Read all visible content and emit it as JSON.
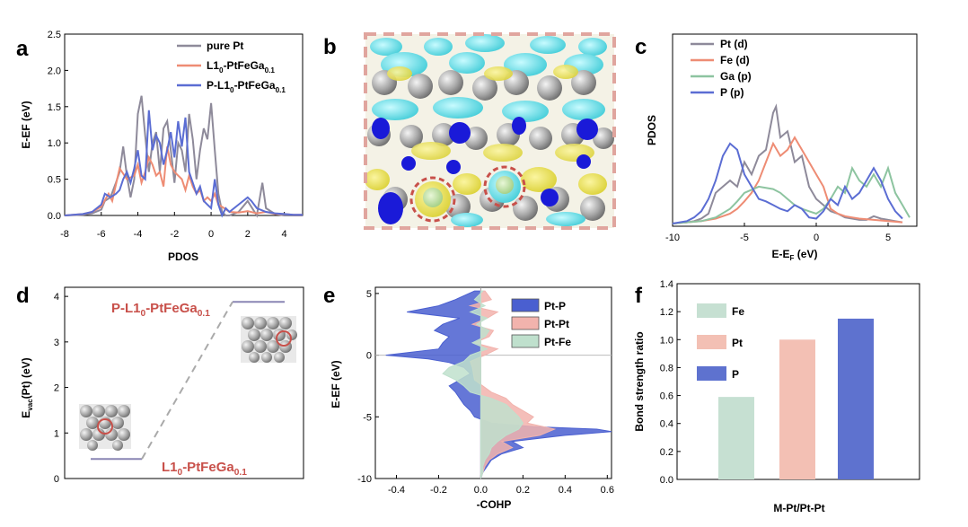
{
  "panel_labels": [
    "a",
    "b",
    "c",
    "d",
    "e",
    "f"
  ],
  "colors": {
    "grey": "#8e8a9a",
    "orange": "#ee8c74",
    "blue": "#5b6dd3",
    "green": "#8dc4a0",
    "bar_fe": "#c6e0d2",
    "bar_pt": "#f3c0b4",
    "bar_p": "#5e72cf",
    "cohp_p": "#4a5fd0",
    "cohp_pt": "#f2b3ad",
    "cohp_fe": "#bfe0cd",
    "label_red": "#c8504a",
    "dashed": "#aaaaaa"
  },
  "chart_data": [
    {
      "id": "a",
      "type": "line",
      "title": "",
      "xlabel": "PDOS",
      "ylabel": "E-EF (eV)",
      "xlim": [
        -8,
        5
      ],
      "ylim": [
        0,
        2.5
      ],
      "xticks": [
        "-8",
        "-6",
        "-4",
        "-2",
        "0",
        "2",
        "4"
      ],
      "yticks": [
        "0.0",
        "0.5",
        "1.0",
        "1.5",
        "2.0",
        "2.5"
      ],
      "legend": "top-right",
      "series": [
        {
          "name": "pure Pt",
          "legend_main": "pure Pt",
          "legend_sub": "",
          "legend_tail": "",
          "color": "#8e8a9a",
          "x": [
            -8,
            -7,
            -6.5,
            -6,
            -5.8,
            -5.5,
            -5.2,
            -5,
            -4.8,
            -4.6,
            -4.4,
            -4.2,
            -4,
            -3.8,
            -3.6,
            -3.4,
            -3.2,
            -3,
            -2.8,
            -2.6,
            -2.4,
            -2.2,
            -2,
            -1.8,
            -1.6,
            -1.4,
            -1.2,
            -1,
            -0.8,
            -0.6,
            -0.4,
            -0.2,
            0,
            0.2,
            0.4,
            0.6,
            0.8,
            1,
            1.5,
            2,
            2.5,
            2.8,
            3,
            3.5,
            4,
            4.5,
            5
          ],
          "y": [
            0,
            0.01,
            0.03,
            0.08,
            0.2,
            0.25,
            0.45,
            0.6,
            0.95,
            0.55,
            0.25,
            0.5,
            1.4,
            1.65,
            1.1,
            0.6,
            1.0,
            1.15,
            0.6,
            1.2,
            1.3,
            0.9,
            0.45,
            1.0,
            0.9,
            0.6,
            1.4,
            1.05,
            0.5,
            0.9,
            1.2,
            1.05,
            1.55,
            0.9,
            0.3,
            0.05,
            0.0,
            0.0,
            0.05,
            0.2,
            0.0,
            0.45,
            0.1,
            0.02,
            0.0,
            0.0,
            0.0
          ]
        },
        {
          "name": "L10-PtFeGa0.1",
          "legend_main": "L1",
          "legend_sub": "0",
          "legend_tail": "-PtFeGa",
          "legend_sub2": "0.1",
          "color": "#ee8c74",
          "x": [
            -8,
            -7,
            -6.5,
            -6,
            -5.6,
            -5.4,
            -5,
            -4.6,
            -4.2,
            -4,
            -3.8,
            -3.6,
            -3.4,
            -3.2,
            -3,
            -2.8,
            -2.6,
            -2.4,
            -2.2,
            -2,
            -1.8,
            -1.6,
            -1.4,
            -1.2,
            -1,
            -0.8,
            -0.6,
            -0.4,
            -0.2,
            0,
            0.2,
            0.4,
            0.6,
            1,
            1.5,
            2,
            2.5,
            3,
            3.5,
            4,
            4.5,
            5
          ],
          "y": [
            0,
            0.02,
            0.05,
            0.12,
            0.3,
            0.2,
            0.65,
            0.5,
            0.55,
            0.7,
            0.45,
            0.6,
            0.8,
            0.7,
            0.55,
            0.6,
            0.4,
            0.95,
            0.7,
            0.6,
            0.55,
            0.5,
            0.35,
            0.55,
            0.4,
            0.3,
            0.35,
            0.2,
            0.25,
            0.2,
            0.3,
            0.15,
            0.12,
            0.05,
            0.04,
            0.06,
            0.03,
            0.05,
            0.02,
            0.02,
            0.01,
            0.01
          ]
        },
        {
          "name": "P-L10-PtFeGa0.1",
          "legend_main": "P-L1",
          "legend_sub": "0",
          "legend_tail": "-PtFeGa",
          "legend_sub2": "0.1",
          "color": "#5b6dd3",
          "x": [
            -8,
            -7,
            -6.5,
            -6,
            -5.8,
            -5.5,
            -5.2,
            -5,
            -4.8,
            -4.6,
            -4.4,
            -4.2,
            -4,
            -3.8,
            -3.6,
            -3.4,
            -3.2,
            -3,
            -2.8,
            -2.6,
            -2.4,
            -2.2,
            -2,
            -1.8,
            -1.6,
            -1.4,
            -1.2,
            -1,
            -0.8,
            -0.6,
            -0.4,
            -0.2,
            0,
            0.2,
            0.4,
            0.6,
            0.8,
            1,
            1.5,
            2,
            2.2,
            2.5,
            3,
            3.5,
            4,
            4.5,
            5
          ],
          "y": [
            0,
            0.02,
            0.05,
            0.15,
            0.3,
            0.25,
            0.3,
            0.35,
            0.5,
            0.6,
            0.45,
            0.65,
            0.9,
            0.55,
            0.5,
            1.45,
            0.9,
            1.1,
            1.0,
            0.7,
            0.9,
            1.15,
            0.8,
            1.3,
            0.95,
            1.35,
            0.6,
            0.45,
            0.3,
            0.4,
            0.2,
            0.15,
            0.1,
            0.5,
            0.15,
            0.0,
            0.1,
            0.05,
            0.15,
            0.25,
            0.2,
            0.1,
            0.05,
            0.03,
            0.02,
            0.01,
            0.01
          ]
        }
      ]
    },
    {
      "id": "c",
      "type": "line",
      "title": "",
      "xlabel": "E-E",
      "xlabel_sub": "F",
      "xlabel_tail": " (eV)",
      "ylabel": "PDOS",
      "xlim": [
        -10,
        7
      ],
      "xticks": [
        "-10",
        "-5",
        "0",
        "5"
      ],
      "legend": "top-left",
      "series": [
        {
          "name": "Pt (d)",
          "color": "#8e8a9a",
          "x": [
            -10,
            -9,
            -8.5,
            -8,
            -7.5,
            -7,
            -6.5,
            -6,
            -5.5,
            -5,
            -4.5,
            -4,
            -3.5,
            -3,
            -2.8,
            -2.5,
            -2,
            -1.5,
            -1,
            -0.5,
            0,
            0.5,
            1,
            1.5,
            2,
            2.5,
            3,
            3.5,
            4,
            4.5,
            5,
            5.5,
            6
          ],
          "y": [
            0,
            0.01,
            0.02,
            0.04,
            0.08,
            0.25,
            0.3,
            0.35,
            0.3,
            0.5,
            0.4,
            0.55,
            0.6,
            0.9,
            0.95,
            0.7,
            0.75,
            0.5,
            0.55,
            0.3,
            0.2,
            0.15,
            0.1,
            0.08,
            0.05,
            0.04,
            0.03,
            0.03,
            0.06,
            0.04,
            0.03,
            0.02,
            0.01
          ]
        },
        {
          "name": "Fe (d)",
          "color": "#ee8c74",
          "x": [
            -10,
            -9,
            -8,
            -7,
            -6.5,
            -6,
            -5.5,
            -5,
            -4.5,
            -4,
            -3.5,
            -3,
            -2.5,
            -2,
            -1.5,
            -1,
            -0.5,
            0,
            0.5,
            1,
            1.5,
            2,
            2.5,
            3,
            4,
            5,
            6
          ],
          "y": [
            0,
            0.01,
            0.02,
            0.04,
            0.06,
            0.08,
            0.12,
            0.18,
            0.25,
            0.35,
            0.5,
            0.65,
            0.55,
            0.6,
            0.7,
            0.6,
            0.5,
            0.4,
            0.3,
            0.12,
            0.08,
            0.06,
            0.05,
            0.04,
            0.03,
            0.02,
            0.01
          ]
        },
        {
          "name": "Ga (p)",
          "color": "#8dc4a0",
          "x": [
            -10,
            -8,
            -7,
            -6,
            -5.5,
            -5,
            -4,
            -3,
            -2.5,
            -2,
            -1.5,
            -1,
            -0.5,
            0,
            0.5,
            1,
            1.5,
            2,
            2.5,
            3,
            3.5,
            4,
            4.5,
            5,
            5.5,
            6,
            6.5
          ],
          "y": [
            0,
            0.02,
            0.05,
            0.12,
            0.18,
            0.25,
            0.3,
            0.28,
            0.25,
            0.2,
            0.15,
            0.12,
            0.1,
            0.08,
            0.12,
            0.2,
            0.3,
            0.25,
            0.45,
            0.35,
            0.3,
            0.4,
            0.3,
            0.45,
            0.25,
            0.15,
            0.05
          ]
        },
        {
          "name": "P (p)",
          "color": "#5b6dd3",
          "x": [
            -10,
            -9,
            -8.5,
            -8,
            -7.5,
            -7,
            -6.5,
            -6,
            -5.5,
            -5,
            -4.5,
            -4,
            -3.5,
            -3,
            -2.5,
            -2,
            -1.5,
            -1,
            -0.5,
            0,
            0.5,
            1,
            1.5,
            2,
            2.5,
            3,
            3.5,
            4,
            4.5,
            5,
            5.5,
            6
          ],
          "y": [
            0,
            0.02,
            0.05,
            0.1,
            0.2,
            0.35,
            0.55,
            0.65,
            0.6,
            0.4,
            0.3,
            0.2,
            0.18,
            0.15,
            0.12,
            0.1,
            0.15,
            0.12,
            0.05,
            0.04,
            0.1,
            0.2,
            0.15,
            0.3,
            0.2,
            0.25,
            0.35,
            0.45,
            0.35,
            0.2,
            0.1,
            0.04
          ]
        }
      ]
    },
    {
      "id": "d",
      "type": "diagram-line",
      "title": "",
      "ylabel_main": "E",
      "ylabel_sub": "vac",
      "ylabel_tail": "(Pt) (eV)",
      "ylim": [
        0,
        4.2
      ],
      "yticks": [
        "0",
        "1",
        "2",
        "3",
        "4"
      ],
      "levels": [
        {
          "name": "L10-PtFeGa0.1",
          "label_main": "L1",
          "label_sub": "0",
          "label_tail": "-PtFeGa",
          "label_sub2": "0.1",
          "value": 0.43
        },
        {
          "name": "P-L10-PtFeGa0.1",
          "label_main": "P-L1",
          "label_sub": "0",
          "label_tail": "-PtFeGa",
          "label_sub2": "0.1",
          "value": 3.88
        }
      ]
    },
    {
      "id": "e",
      "type": "area",
      "title": "",
      "xlabel": "-COHP",
      "ylabel": "E-EF (eV)",
      "xlim": [
        -0.5,
        0.62
      ],
      "ylim": [
        -10,
        5.5
      ],
      "xticks": [
        "-0.4",
        "-0.2",
        "0.0",
        "0.2",
        "0.4",
        "0.6"
      ],
      "yticks": [
        "-10",
        "-5",
        "0",
        "5"
      ],
      "legend": "top-right",
      "series": [
        {
          "name": "Pt-P",
          "color": "#4a5fd0",
          "y": [
            5.2,
            4.5,
            4,
            3.5,
            3,
            2.5,
            2,
            1.5,
            1,
            0.5,
            0,
            -0.3,
            -0.6,
            -1,
            -1.5,
            -2,
            -2.5,
            -3,
            -3.5,
            -4,
            -4.5,
            -5,
            -5.5,
            -5.8,
            -6,
            -6.2,
            -6.5,
            -7,
            -7.5,
            -8,
            -8.5,
            -9,
            -9.5,
            -10
          ],
          "x": [
            -0.03,
            -0.12,
            -0.2,
            -0.35,
            -0.1,
            -0.18,
            -0.22,
            -0.15,
            -0.18,
            -0.2,
            -0.45,
            -0.25,
            -0.15,
            -0.08,
            -0.05,
            -0.1,
            -0.15,
            -0.12,
            -0.1,
            -0.08,
            -0.05,
            -0.03,
            0.05,
            0.25,
            0.55,
            0.62,
            0.4,
            0.15,
            0.2,
            0.1,
            0.05,
            0.03,
            0.01,
            0.0
          ]
        },
        {
          "name": "Pt-Pt",
          "color": "#f2b3ad",
          "y": [
            5.2,
            4.5,
            4,
            3.5,
            3,
            2.5,
            2,
            1.5,
            1,
            0.5,
            0,
            -0.5,
            -1,
            -2,
            -3,
            -3.5,
            -4,
            -4.5,
            -5,
            -5.5,
            -6,
            -6.5,
            -7,
            -7.5,
            -8,
            -8.5,
            -9,
            -9.5,
            -10
          ],
          "x": [
            0.02,
            0.05,
            -0.05,
            0.08,
            0.03,
            -0.04,
            0.06,
            0.04,
            -0.03,
            0.08,
            0.02,
            -0.05,
            -0.04,
            -0.03,
            0.05,
            0.12,
            0.15,
            0.2,
            0.25,
            0.22,
            0.35,
            0.28,
            0.1,
            0.15,
            0.08,
            0.04,
            0.02,
            0.01,
            0.0
          ]
        },
        {
          "name": "Pt-Fe",
          "color": "#bfe0cd",
          "y": [
            5.2,
            4.5,
            4,
            3.5,
            3,
            2.5,
            2,
            1.5,
            1,
            0.5,
            0,
            -0.5,
            -1,
            -1.5,
            -2,
            -2.5,
            -3,
            -3.5,
            -4,
            -4.5,
            -5,
            -5.5,
            -6,
            -6.5,
            -7,
            -7.5,
            -8,
            -8.5,
            -9,
            -9.5,
            -10
          ],
          "x": [
            0.01,
            -0.03,
            0.02,
            -0.05,
            0.03,
            -0.02,
            0.04,
            0.02,
            -0.04,
            0.03,
            -0.05,
            -0.08,
            -0.15,
            -0.18,
            -0.12,
            -0.08,
            -0.05,
            0.05,
            0.12,
            0.15,
            0.18,
            0.2,
            0.18,
            0.12,
            0.08,
            0.05,
            0.04,
            0.02,
            0.01,
            0.01,
            0.0
          ]
        }
      ]
    },
    {
      "id": "f",
      "type": "bar",
      "title": "",
      "xlabel": "M-Pt/Pt-Pt",
      "ylabel": "Bond strength  ratio",
      "ylim": [
        0,
        1.4
      ],
      "yticks": [
        "0.0",
        "0.2",
        "0.4",
        "0.6",
        "0.8",
        "1.0",
        "1.2",
        "1.4"
      ],
      "legend": "top-left",
      "categories": [
        "Fe",
        "Pt",
        "P"
      ],
      "values": [
        0.59,
        1.0,
        1.15
      ]
    }
  ]
}
